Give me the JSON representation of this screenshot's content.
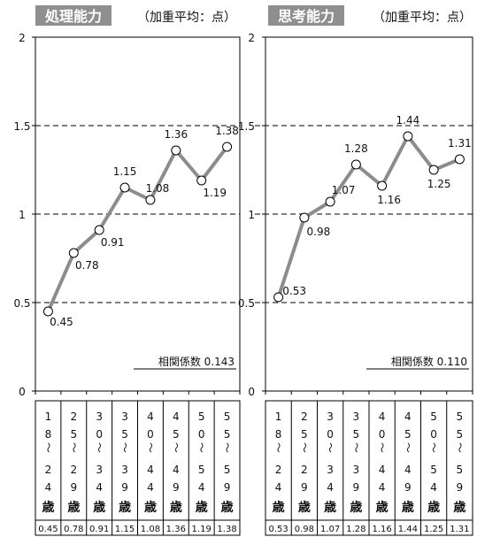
{
  "chart_data": [
    {
      "type": "line",
      "title": "処理能力",
      "subtitle": "（加重平均：点）",
      "categories": [
        [
          "1",
          "8",
          "〜",
          "2",
          "4",
          "歳"
        ],
        [
          "2",
          "5",
          "〜",
          "2",
          "9",
          "歳"
        ],
        [
          "3",
          "0",
          "〜",
          "3",
          "4",
          "歳"
        ],
        [
          "3",
          "5",
          "〜",
          "3",
          "9",
          "歳"
        ],
        [
          "4",
          "0",
          "〜",
          "4",
          "4",
          "歳"
        ],
        [
          "4",
          "5",
          "〜",
          "4",
          "9",
          "歳"
        ],
        [
          "5",
          "0",
          "〜",
          "5",
          "4",
          "歳"
        ],
        [
          "5",
          "5",
          "〜",
          "5",
          "9",
          "歳"
        ]
      ],
      "values": [
        0.45,
        0.78,
        0.91,
        1.15,
        1.08,
        1.36,
        1.19,
        1.38
      ],
      "table_values": [
        "0.45",
        "0.78",
        "0.91",
        "1.15",
        "1.08",
        "1.36",
        "1.19",
        "1.38"
      ],
      "ylim": [
        0,
        2
      ],
      "yticks": [
        0,
        0.5,
        1,
        1.5,
        2
      ],
      "ytick_labels": [
        "0",
        "0.5",
        "1",
        "1.5",
        "2"
      ],
      "dashed_gridlines": [
        0.5,
        1,
        1.5
      ],
      "annotation": "相関係数 0.143",
      "line_color": "#8c8c8c",
      "marker_fill": "#ffffff"
    },
    {
      "type": "line",
      "title": "思考能力",
      "subtitle": "（加重平均：点）",
      "categories": [
        [
          "1",
          "8",
          "〜",
          "2",
          "4",
          "歳"
        ],
        [
          "2",
          "5",
          "〜",
          "2",
          "9",
          "歳"
        ],
        [
          "3",
          "0",
          "〜",
          "3",
          "4",
          "歳"
        ],
        [
          "3",
          "5",
          "〜",
          "3",
          "9",
          "歳"
        ],
        [
          "4",
          "0",
          "〜",
          "4",
          "4",
          "歳"
        ],
        [
          "4",
          "5",
          "〜",
          "4",
          "9",
          "歳"
        ],
        [
          "5",
          "0",
          "〜",
          "5",
          "4",
          "歳"
        ],
        [
          "5",
          "5",
          "〜",
          "5",
          "9",
          "歳"
        ]
      ],
      "values": [
        0.53,
        0.98,
        1.07,
        1.28,
        1.16,
        1.44,
        1.25,
        1.31
      ],
      "table_values": [
        "0.53",
        "0.98",
        "1.07",
        "1.28",
        "1.16",
        "1.44",
        "1.25",
        "1.31"
      ],
      "ylim": [
        0,
        2
      ],
      "yticks": [
        0,
        0.5,
        1,
        1.5,
        2
      ],
      "ytick_labels": [
        "0",
        "0.5",
        "1",
        "1.5",
        "2"
      ],
      "dashed_gridlines": [
        0.5,
        1,
        1.5
      ],
      "annotation": "相関係数 0.110",
      "line_color": "#8c8c8c",
      "marker_fill": "#ffffff"
    }
  ]
}
